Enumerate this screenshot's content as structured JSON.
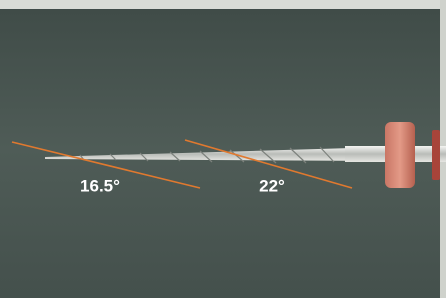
{
  "annotations": [
    "16.5°",
    "22°"
  ]
}
